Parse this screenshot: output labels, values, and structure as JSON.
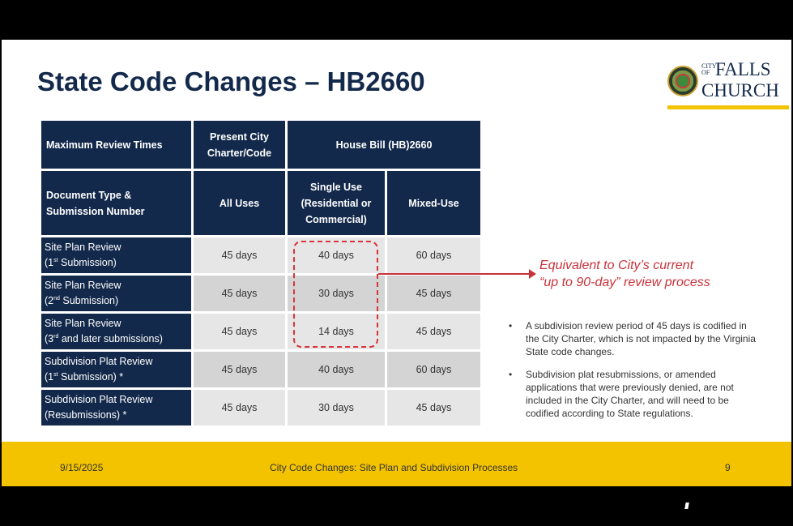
{
  "title": "State Code Changes – HB2660",
  "logo": {
    "city": "CITY OF",
    "falls": "FALLS",
    "church": "CHURCH"
  },
  "table": {
    "h1": [
      "Maximum Review Times",
      "Present City Charter/Code",
      "House Bill (HB)2660"
    ],
    "h2": [
      "Document Type & Submission Number",
      "All Uses",
      "Single Use (Residential or Commercial)",
      "Mixed-Use"
    ],
    "rows": [
      {
        "l1": "Site Plan Review",
        "l2a": "(1",
        "sup": "st",
        "l2b": " Submission)",
        "v": [
          "45 days",
          "40 days",
          "60 days"
        ]
      },
      {
        "l1": "Site Plan Review",
        "l2a": "(2",
        "sup": "nd",
        "l2b": " Submission)",
        "v": [
          "45 days",
          "30 days",
          "45 days"
        ]
      },
      {
        "l1": "Site Plan Review",
        "l2a": "(3",
        "sup": "rd",
        "l2b": " and later submissions)",
        "v": [
          "45 days",
          "14 days",
          "45 days"
        ]
      },
      {
        "l1": "Subdivision Plat Review",
        "l2a": "(1",
        "sup": "st",
        "l2b": " Submission) *",
        "v": [
          "45 days",
          "40 days",
          "60 days"
        ]
      },
      {
        "l1": "Subdivision Plat Review",
        "l2a": "(Resubmissions) *",
        "sup": "",
        "l2b": "",
        "v": [
          "45 days",
          "30 days",
          "45 days"
        ]
      }
    ]
  },
  "callout": [
    "Equivalent to City’s current",
    "“up to 90-day” review process"
  ],
  "bullets": [
    "A subdivision review period of 45 days is codified in the City Charter, which is not impacted by the Virginia State code changes.",
    "Subdivision plat resubmissions, or amended applications that were previously denied, are not included in the City Charter, and will need to be codified according to State regulations."
  ],
  "footer": {
    "date": "9/15/2025",
    "title": "City Code Changes: Site Plan and Subdivision Processes",
    "page": "9"
  },
  "colors": {
    "navy": "#13294b",
    "gold": "#f3c300",
    "red": "#c8323a"
  }
}
